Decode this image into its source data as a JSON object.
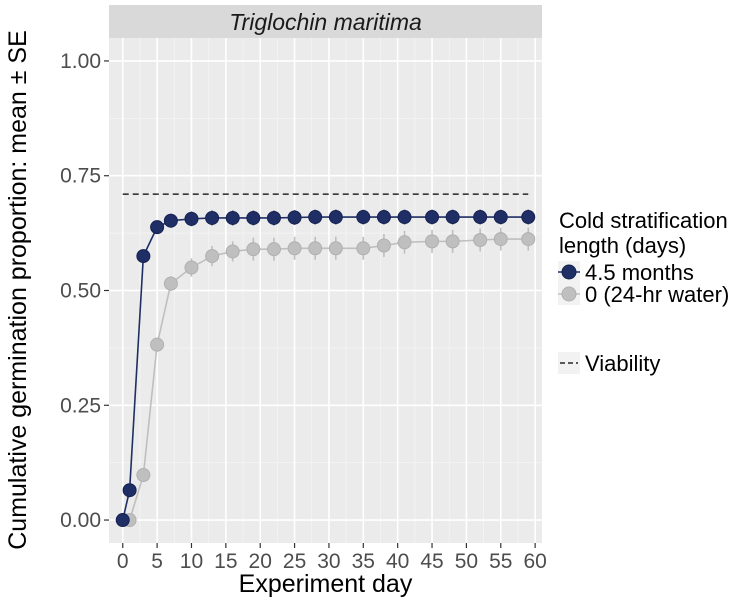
{
  "chart_data": {
    "type": "line",
    "facet_title": "Triglochin maritima",
    "xlabel": "Experiment day",
    "ylabel": "Cumulative germination proportion: mean ± SE",
    "xlim": [
      -2,
      61
    ],
    "ylim": [
      -0.05,
      1.05
    ],
    "x_ticks": [
      0,
      5,
      10,
      15,
      20,
      25,
      30,
      35,
      40,
      45,
      50,
      55,
      60
    ],
    "x_tick_labels": [
      "0",
      "5",
      "10",
      "15",
      "20",
      "25",
      "30",
      "35",
      "40",
      "45",
      "50",
      "55",
      "60"
    ],
    "y_ticks": [
      0,
      0.25,
      0.5,
      0.75,
      1.0
    ],
    "y_tick_labels": [
      "0.00",
      "0.25",
      "0.50",
      "0.75",
      "1.00"
    ],
    "legend_title": [
      "Cold stratification",
      "length (days)"
    ],
    "viability_label": "Viability",
    "viability": {
      "value": 0.71,
      "x_start": 0,
      "x_end": 59
    },
    "series": [
      {
        "name": "4.5 months",
        "color": "#1f2f66",
        "x": [
          0,
          1,
          3,
          5,
          7,
          10,
          13,
          16,
          19,
          22,
          25,
          28,
          31,
          35,
          38,
          41,
          45,
          48,
          52,
          55,
          59
        ],
        "values": [
          0.0,
          0.065,
          0.575,
          0.638,
          0.652,
          0.656,
          0.658,
          0.658,
          0.658,
          0.658,
          0.659,
          0.66,
          0.66,
          0.66,
          0.66,
          0.66,
          0.66,
          0.66,
          0.66,
          0.66,
          0.66
        ],
        "se": [
          0,
          0.008,
          0.012,
          0.012,
          0.015,
          0.016,
          0.016,
          0.016,
          0.016,
          0.016,
          0.016,
          0.016,
          0.016,
          0.016,
          0.016,
          0.016,
          0.016,
          0.016,
          0.016,
          0.016,
          0.016
        ]
      },
      {
        "name": "0 (24-hr water)",
        "color": "#bfbfbf",
        "x": [
          0,
          1,
          3,
          5,
          7,
          10,
          13,
          16,
          19,
          22,
          25,
          28,
          31,
          35,
          38,
          41,
          45,
          48,
          52,
          55,
          59
        ],
        "values": [
          0.0,
          0.0,
          0.098,
          0.382,
          0.515,
          0.55,
          0.575,
          0.585,
          0.59,
          0.59,
          0.592,
          0.592,
          0.592,
          0.592,
          0.598,
          0.605,
          0.607,
          0.607,
          0.61,
          0.612,
          0.612
        ],
        "se": [
          0,
          0,
          0.008,
          0.015,
          0.016,
          0.02,
          0.022,
          0.022,
          0.025,
          0.025,
          0.025,
          0.025,
          0.025,
          0.025,
          0.025,
          0.025,
          0.025,
          0.025,
          0.025,
          0.025,
          0.025
        ]
      }
    ]
  }
}
